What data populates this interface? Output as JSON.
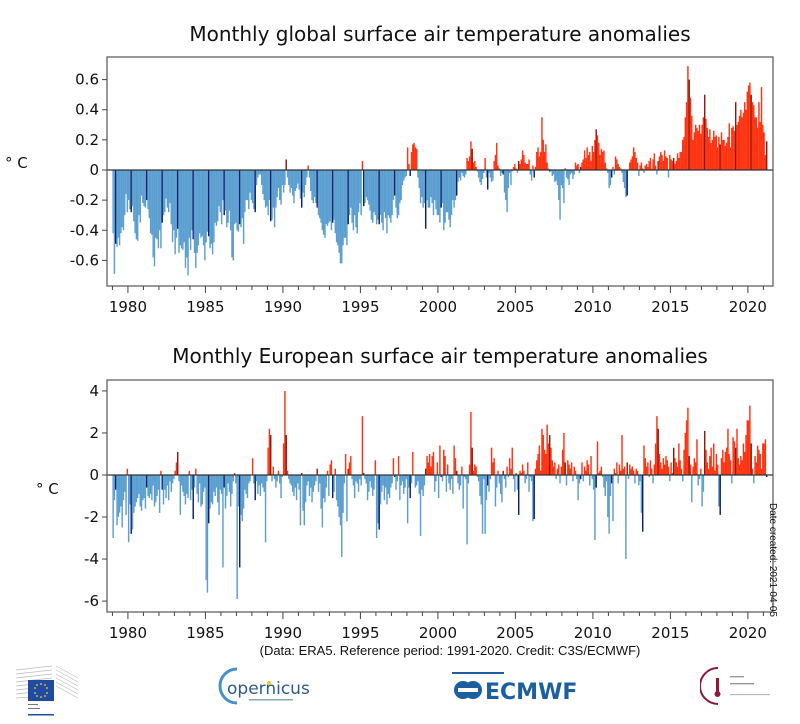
{
  "colors": {
    "positive": "#ff3311",
    "positive_highlight": "#8e1a0e",
    "negative": "#5b9fd0",
    "negative_highlight": "#0b1f6b",
    "axis": "#333333"
  },
  "highlight_month": "March",
  "footer": "(Data: ERA5.  Reference period: 1991-2020.  Credit: C3S/ECMWF)",
  "date_created": "Date created: 2021-04-05",
  "logos": [
    "European Commission",
    "Copernicus Europe's eyes on Earth",
    "Implemented by ECMWF",
    "Climate Change Service"
  ],
  "chart_data": [
    {
      "type": "bar",
      "title": "Monthly global surface air temperature anomalies",
      "ylabel": "° C",
      "xlabel": "",
      "start": "1979-01",
      "end": "2021-03",
      "xlim": [
        1978.65,
        2021.62
      ],
      "ylim": [
        -0.77,
        0.75
      ],
      "xticks": [
        "1980",
        "1985",
        "1990",
        "1995",
        "2000",
        "2005",
        "2010",
        "2015",
        "2020"
      ],
      "yticks": [
        "-0.6",
        "-0.4",
        "-0.2",
        "0",
        "0.2",
        "0.4",
        "0.6"
      ],
      "grid": false,
      "values": [
        -0.42,
        -0.69,
        -0.49,
        -0.51,
        -0.45,
        -0.5,
        -0.42,
        -0.38,
        -0.4,
        -0.3,
        -0.16,
        -0.28,
        -0.2,
        -0.26,
        -0.28,
        -0.24,
        -0.34,
        -0.42,
        -0.46,
        -0.47,
        -0.3,
        -0.35,
        -0.17,
        -0.22,
        -0.24,
        -0.25,
        -0.2,
        -0.26,
        -0.32,
        -0.42,
        -0.43,
        -0.58,
        -0.64,
        -0.45,
        -0.46,
        -0.52,
        -0.4,
        -0.52,
        -0.35,
        -0.3,
        -0.28,
        -0.19,
        -0.25,
        -0.28,
        -0.22,
        -0.36,
        -0.48,
        -0.4,
        -0.56,
        -0.45,
        -0.39,
        -0.55,
        -0.5,
        -0.52,
        -0.53,
        -0.48,
        -0.65,
        -0.58,
        -0.7,
        -0.45,
        -0.53,
        -0.4,
        -0.46,
        -0.55,
        -0.65,
        -0.55,
        -0.5,
        -0.42,
        -0.45,
        -0.44,
        -0.5,
        -0.6,
        -0.48,
        -0.41,
        -0.44,
        -0.52,
        -0.49,
        -0.56,
        -0.48,
        -0.35,
        -0.37,
        -0.34,
        -0.24,
        -0.28,
        -0.36,
        -0.2,
        -0.3,
        -0.27,
        -0.38,
        -0.35,
        -0.27,
        -0.4,
        -0.58,
        -0.6,
        -0.36,
        -0.35,
        -0.4,
        -0.41,
        -0.36,
        -0.38,
        -0.32,
        -0.49,
        -0.28,
        -0.2,
        -0.2,
        -0.26,
        -0.15,
        -0.2,
        -0.22,
        -0.26,
        -0.28,
        -0.1,
        -0.05,
        -0.03,
        -0.03,
        -0.1,
        -0.16,
        -0.2,
        -0.25,
        -0.24,
        -0.3,
        -0.2,
        -0.34,
        -0.33,
        -0.25,
        -0.38,
        -0.25,
        -0.18,
        -0.12,
        -0.2,
        -0.23,
        -0.1,
        -0.15,
        -0.1,
        0.07,
        -0.05,
        -0.1,
        -0.15,
        -0.12,
        -0.17,
        -0.22,
        -0.14,
        -0.12,
        -0.09,
        -0.13,
        -0.19,
        -0.25,
        -0.15,
        -0.18,
        -0.1,
        -0.05,
        0.03,
        -0.05,
        -0.14,
        -0.2,
        -0.22,
        -0.18,
        -0.22,
        -0.25,
        -0.3,
        -0.32,
        -0.35,
        -0.4,
        -0.43,
        -0.45,
        -0.36,
        -0.37,
        -0.35,
        -0.34,
        -0.4,
        -0.35,
        -0.33,
        -0.42,
        -0.48,
        -0.5,
        -0.55,
        -0.62,
        -0.62,
        -0.5,
        -0.45,
        -0.45,
        -0.5,
        -0.36,
        -0.3,
        -0.25,
        -0.35,
        -0.4,
        -0.3,
        -0.38,
        -0.42,
        -0.28,
        -0.22,
        -0.3,
        0.06,
        -0.24,
        -0.22,
        -0.18,
        -0.2,
        -0.23,
        -0.27,
        -0.33,
        -0.35,
        -0.28,
        -0.3,
        -0.36,
        -0.33,
        -0.36,
        -0.3,
        -0.35,
        -0.4,
        -0.28,
        -0.32,
        -0.42,
        -0.3,
        -0.32,
        -0.35,
        -0.3,
        -0.2,
        -0.17,
        -0.25,
        -0.32,
        -0.3,
        -0.22,
        -0.2,
        -0.1,
        -0.07,
        -0.05,
        -0.04,
        0.15,
        0.04,
        -0.04,
        0.12,
        0.17,
        0.18,
        0.15,
        0.14,
        -0.05,
        -0.12,
        -0.22,
        -0.18,
        -0.25,
        -0.22,
        -0.39,
        -0.2,
        -0.25,
        -0.25,
        -0.18,
        -0.22,
        -0.3,
        -0.2,
        -0.26,
        -0.3,
        -0.3,
        -0.35,
        -0.25,
        -0.22,
        -0.4,
        -0.35,
        -0.28,
        -0.28,
        -0.33,
        -0.38,
        -0.3,
        -0.2,
        -0.25,
        -0.2,
        -0.17,
        -0.08,
        -0.05,
        -0.07,
        -0.02,
        -0.04,
        -0.05,
        -0.03,
        0.08,
        0.06,
        0.09,
        0.19,
        0.14,
        0.05,
        0.06,
        0.02,
        -0.01,
        -0.05,
        -0.08,
        -0.1,
        -0.06,
        -0.02,
        0.08,
        -0.05,
        -0.13,
        -0.02,
        -0.05,
        -0.08,
        -0.07,
        0.06,
        0.1,
        0.18,
        0.03,
        0.01,
        -0.04,
        -0.02,
        -0.03,
        -0.15,
        -0.2,
        -0.28,
        -0.12,
        -0.02,
        -0.1,
        -0.01,
        0.02,
        0.04,
        0.01,
        -0.02,
        0.06,
        0.04,
        0.07,
        0.13,
        0.1,
        0.05,
        0.04,
        0.04,
        0.07,
        -0.03,
        -0.07,
        0.03,
        -0.05,
        0.02,
        0.12,
        0.15,
        0.09,
        0.12,
        0.35,
        0.2,
        0.12,
        0.17,
        0.05,
        0.01,
        -0.01,
        -0.01,
        -0.04,
        -0.03,
        -0.08,
        -0.07,
        -0.1,
        -0.2,
        -0.33,
        -0.1,
        -0.12,
        -0.22,
        0.01,
        -0.05,
        -0.06,
        -0.1,
        -0.03,
        -0.02,
        -0.06,
        -0.03,
        0.05,
        0.03,
        0.04,
        -0.02,
        0.02,
        0.05,
        0.07,
        0.13,
        0.08,
        0.15,
        0.1,
        0.12,
        0.06,
        0.16,
        0.12,
        0.2,
        0.27,
        0.23,
        0.18,
        0.1,
        0.14,
        0.12,
        0.13,
        0.05,
        0.01,
        -0.02,
        -0.12,
        -0.1,
        -0.05,
        0.02,
        -0.03,
        0.09,
        0.07,
        0.04,
        0.02,
        0.01,
        -0.02,
        -0.08,
        -0.12,
        -0.18,
        -0.17,
        0.0,
        0.05,
        0.07,
        0.09,
        0.15,
        0.12,
        0.08,
        0.05,
        -0.04,
        0.03,
        0.05,
        0.01,
        -0.02,
        0.03,
        0.04,
        0.02,
        0.06,
        0.08,
        0.01,
        0.07,
        0.11,
        0.03,
        -0.03,
        0.06,
        0.09,
        0.12,
        0.1,
        0.06,
        0.13,
        0.09,
        0.08,
        -0.05,
        0.1,
        0.07,
        0.06,
        0.08,
        0.04,
        0.06,
        0.11,
        0.08,
        0.12,
        0.12,
        0.2,
        0.22,
        0.35,
        0.45,
        0.69,
        0.6,
        0.48,
        0.36,
        0.2,
        0.25,
        0.3,
        0.28,
        0.26,
        0.3,
        0.24,
        0.3,
        0.35,
        0.5,
        0.34,
        0.28,
        0.22,
        0.27,
        0.18,
        0.2,
        0.26,
        0.22,
        0.23,
        0.15,
        0.22,
        0.17,
        0.25,
        0.2,
        0.2,
        0.16,
        0.18,
        0.22,
        0.31,
        0.15,
        0.28,
        0.29,
        0.26,
        0.45,
        0.3,
        0.32,
        0.36,
        0.4,
        0.35,
        0.38,
        0.45,
        0.4,
        0.52,
        0.56,
        0.58,
        0.5,
        0.45,
        0.43,
        0.35,
        0.35,
        0.28,
        0.45,
        0.32,
        0.55,
        0.3,
        0.25,
        0.1,
        0.19
      ]
    },
    {
      "type": "bar",
      "title": "Monthly European surface air temperature anomalies",
      "ylabel": "° C",
      "xlabel": "",
      "start": "1979-01",
      "end": "2021-03",
      "xlim": [
        1978.65,
        2021.62
      ],
      "ylim": [
        -6.52,
        4.52
      ],
      "xticks": [
        "1980",
        "1985",
        "1990",
        "1995",
        "2000",
        "2005",
        "2010",
        "2015",
        "2020"
      ],
      "yticks": [
        "-6",
        "-4",
        "-2",
        "0",
        "2",
        "4"
      ],
      "grid": false,
      "values": [
        -3.0,
        -1.2,
        -0.7,
        -2.4,
        -2.0,
        -1.8,
        -1.5,
        -2.5,
        -1.2,
        -0.8,
        -1.9,
        0.3,
        -3.2,
        -1.4,
        -2.8,
        -2.6,
        -1.8,
        -1.5,
        -1.3,
        -1.1,
        -0.9,
        -1.5,
        -1.7,
        -1.2,
        -1.1,
        -1.6,
        -0.6,
        -1.0,
        -1.1,
        -0.9,
        -1.2,
        -0.5,
        -1.5,
        -1.3,
        -1.0,
        -0.7,
        -1.8,
        0.2,
        -0.7,
        -1.4,
        -0.7,
        -1.1,
        -0.5,
        -1.2,
        -0.3,
        -0.8,
        -0.4,
        -0.2,
        0.2,
        0.6,
        1.1,
        -0.3,
        -1.9,
        -0.5,
        -0.8,
        -1.0,
        -1.4,
        -0.9,
        -1.1,
        0.2,
        -1.2,
        -0.7,
        -2.1,
        -0.6,
        0.3,
        -0.9,
        -1.3,
        -0.4,
        -1.5,
        -1.4,
        -0.8,
        -0.6,
        -5.0,
        -5.6,
        -2.3,
        -1.6,
        -1.3,
        -1.4,
        -0.8,
        -1.0,
        -0.6,
        -1.3,
        -1.9,
        -0.7,
        -0.9,
        -4.4,
        -0.6,
        -1.6,
        -1.0,
        -0.4,
        -0.8,
        -1.5,
        -0.9,
        -0.3,
        0.1,
        -0.4,
        -5.9,
        -1.5,
        -4.4,
        -1.9,
        -2.2,
        -1.6,
        -0.7,
        -0.9,
        -1.1,
        -0.4,
        -0.3,
        0.0,
        0.8,
        -0.4,
        -1.2,
        -0.3,
        -0.9,
        -0.5,
        -1.0,
        -0.4,
        -0.6,
        -0.8,
        -3.2,
        -0.3,
        1.3,
        2.2,
        1.9,
        -0.3,
        0.4,
        -0.2,
        -0.6,
        -0.3,
        0.2,
        -0.4,
        -1.1,
        -0.1,
        1.5,
        4.0,
        1.9,
        0.2,
        -0.2,
        -0.4,
        -0.5,
        -0.8,
        -1.0,
        -0.6,
        -1.2,
        -0.4,
        -0.7,
        -2.4,
        0.1,
        -1.7,
        -2.4,
        -1.3,
        -0.5,
        -0.3,
        -1.0,
        -0.6,
        -1.3,
        -0.8,
        -0.5,
        -0.3,
        0.3,
        -0.8,
        -0.4,
        -1.6,
        -2.5,
        -1.1,
        -1.3,
        -0.6,
        0.2,
        -1.0,
        0.5,
        0.7,
        -1.1,
        -0.8,
        0.3,
        -1.2,
        -1.5,
        -2.0,
        -2.4,
        -3.9,
        -1.8,
        -0.4,
        1.0,
        -2.2,
        0.3,
        0.6,
        0.9,
        -0.2,
        -0.5,
        -1.1,
        -0.3,
        -0.4,
        -0.8,
        -0.2,
        -0.5,
        2.8,
        0.1,
        -0.2,
        -0.4,
        -1.2,
        -0.8,
        -0.3,
        -0.6,
        -1.0,
        -0.7,
        0.7,
        -3.0,
        -2.3,
        -2.6,
        -1.4,
        -0.8,
        -0.5,
        -1.2,
        -0.6,
        -1.4,
        -0.9,
        -1.1,
        -0.6,
        -0.4,
        0.8,
        -0.1,
        -0.7,
        -0.3,
        0.9,
        -1.2,
        -0.5,
        -0.3,
        -0.9,
        -0.6,
        -0.2,
        -2.3,
        -0.6,
        -1.1,
        -0.4,
        1.1,
        0.0,
        -0.6,
        -0.5,
        -0.3,
        -0.9,
        -2.9,
        -0.7,
        -1.0,
        -0.5,
        0.3,
        0.9,
        0.6,
        1.0,
        0.4,
        0.9,
        1.1,
        -0.8,
        -0.3,
        0.6,
        -1.1,
        1.4,
        -0.1,
        -0.3,
        1.2,
        0.9,
        -0.8,
        0.5,
        -0.4,
        -0.7,
        -0.2,
        -0.9,
        1.4,
        0.8,
        0.2,
        -0.4,
        -0.7,
        -0.5,
        0.4,
        -1.6,
        -0.1,
        -0.2,
        -3.3,
        -0.4,
        0.5,
        3.0,
        1.3,
        0.2,
        0.5,
        0.4,
        -0.1,
        -0.3,
        -1.0,
        -1.4,
        -2.8,
        -0.2,
        -2.8,
        -1.2,
        -0.5,
        -0.8,
        -0.2,
        1.3,
        0.6,
        0.8,
        -1.5,
        -0.6,
        0.2,
        -0.4,
        -0.9,
        -1.3,
        0.2,
        -0.2,
        -0.6,
        0.4,
        -0.1,
        0.8,
        0.3,
        1.3,
        -0.2,
        -0.8,
        0.1,
        -0.7,
        -1.9,
        0.2,
        0.1,
        0.5,
        0.2,
        -0.4,
        -0.2,
        0.6,
        -0.8,
        -0.1,
        -0.3,
        -2.2,
        -2.1,
        0.3,
        0.7,
        1.0,
        1.4,
        0.2,
        2.2,
        1.9,
        1.2,
        1.0,
        2.4,
        1.5,
        1.9,
        1.3,
        0.7,
        0.4,
        0.6,
        -0.2,
        0.3,
        0.5,
        -0.4,
        0.4,
        1.2,
        2.0,
        0.6,
        -0.5,
        0.7,
        0.5,
        0.3,
        0.6,
        -0.3,
        0.4,
        0.2,
        -0.2,
        -1.2,
        -0.4,
        -0.2,
        0.6,
        -0.3,
        0.4,
        0.2,
        0.7,
        0.5,
        -0.5,
        0.9,
        -0.2,
        -0.7,
        -3.1,
        -0.6,
        1.6,
        0.1,
        0.2,
        0.4,
        -0.1,
        -0.6,
        -1.0,
        -0.3,
        -2.0,
        -2.8,
        -1.0,
        -0.4,
        -2.2,
        0.3,
        0.1,
        0.6,
        -0.4,
        0.5,
        0.2,
        1.9,
        0.3,
        0.4,
        -4.0,
        0.6,
        -0.2,
        0.5,
        0.3,
        0.4,
        0.2,
        -0.4,
        0.3,
        0.2,
        -0.5,
        -0.3,
        -1.8,
        -2.7,
        1.4,
        0.8,
        0.4,
        0.6,
        -0.1,
        0.7,
        0.3,
        -0.4,
        0.5,
        1.5,
        2.8,
        2.2,
        1.0,
        0.6,
        0.3,
        0.8,
        0.5,
        0.9,
        0.7,
        0.4,
        -0.3,
        0.6,
        0.1,
        1.3,
        0.8,
        0.6,
        0.4,
        1.5,
        0.7,
        0.3,
        -0.3,
        1.2,
        2.0,
        2.6,
        3.2,
        0.9,
        0.5,
        -1.3,
        0.4,
        0.8,
        0.6,
        1.7,
        -0.5,
        -0.2,
        0.3,
        -1.5,
        -0.8,
        2.1,
        1.2,
        0.6,
        0.3,
        0.9,
        1.3,
        0.4,
        1.5,
        0.2,
        1.0,
        0.5,
        -1.5,
        -1.9,
        0.8,
        1.2,
        0.6,
        1.1,
        1.3,
        2.2,
        1.0,
        0.7,
        -0.4,
        1.8,
        1.6,
        1.3,
        2.2,
        0.8,
        0.5,
        0.9,
        0.7,
        1.5,
        1.1,
        1.9,
        2.6,
        2.6,
        3.3,
        1.5,
        0.3,
        -0.4,
        0.9,
        0.6,
        1.4,
        1.2,
        1.0,
        0.3,
        1.5,
        1.5,
        1.7,
        -0.1
      ]
    }
  ]
}
